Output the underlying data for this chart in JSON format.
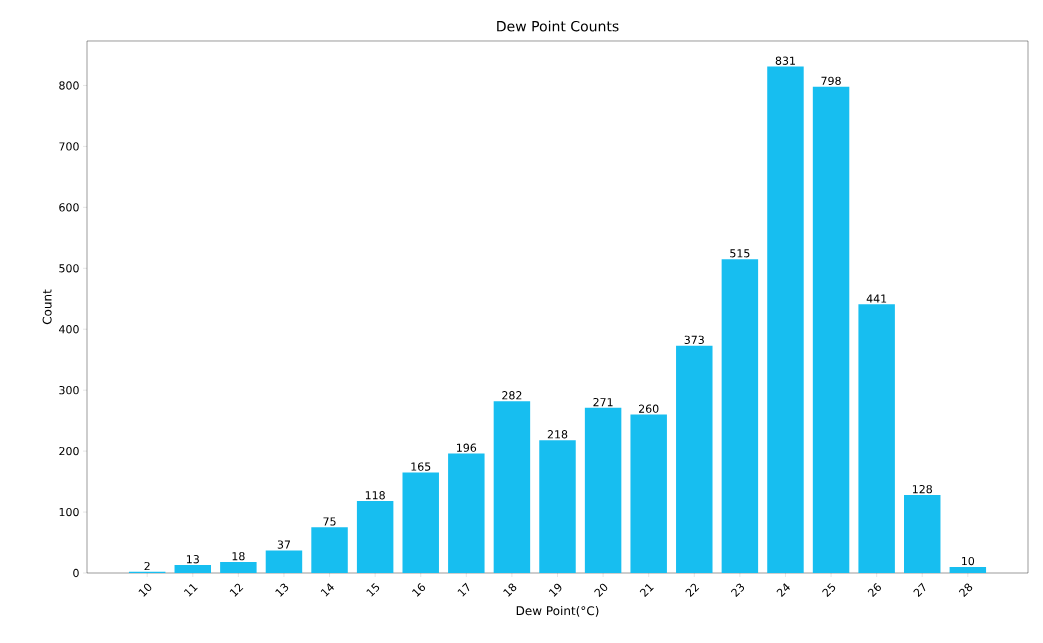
{
  "chart_data": {
    "type": "bar",
    "title": "Dew Point Counts",
    "xlabel": "Dew Point(°C)",
    "ylabel": "Count",
    "categories": [
      "10",
      "11",
      "12",
      "13",
      "14",
      "15",
      "16",
      "17",
      "18",
      "19",
      "20",
      "21",
      "22",
      "23",
      "24",
      "25",
      "26",
      "27",
      "28"
    ],
    "values": [
      2,
      13,
      18,
      37,
      75,
      118,
      165,
      196,
      282,
      218,
      271,
      260,
      373,
      515,
      831,
      798,
      441,
      128,
      10
    ],
    "color": "#17bef0",
    "ylim": [
      0,
      873
    ],
    "yticks": [
      0,
      100,
      200,
      300,
      400,
      500,
      600,
      700,
      800
    ],
    "data_labels": true
  }
}
